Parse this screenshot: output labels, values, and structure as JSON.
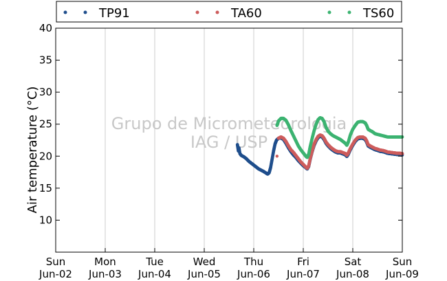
{
  "chart_data": {
    "type": "scatter",
    "ylabel": "Air temperature (°C)",
    "xlabel": "",
    "ylim": [
      5,
      40
    ],
    "yticks": [
      10,
      15,
      20,
      25,
      30,
      35,
      40
    ],
    "xlim_days": [
      0,
      7
    ],
    "xticks": [
      {
        "day": "Sun",
        "date": "Jun-02"
      },
      {
        "day": "Mon",
        "date": "Jun-03"
      },
      {
        "day": "Tue",
        "date": "Jun-04"
      },
      {
        "day": "Wed",
        "date": "Jun-05"
      },
      {
        "day": "Thu",
        "date": "Jun-06"
      },
      {
        "day": "Fri",
        "date": "Jun-07"
      },
      {
        "day": "Sat",
        "date": "Jun-08"
      },
      {
        "day": "Sun",
        "date": "Jun-09"
      }
    ],
    "grid": "vertical",
    "legend_position": "top",
    "watermark": [
      "Grupo de Micrometeorologia",
      "IAG / USP"
    ],
    "series": [
      {
        "name": "TP91",
        "color": "#1f4e8c",
        "points": [
          [
            3.67,
            21.8
          ],
          [
            3.69,
            20.8
          ],
          [
            3.7,
            21.3
          ],
          [
            3.72,
            20.4
          ],
          [
            3.75,
            20.1
          ],
          [
            3.8,
            19.9
          ],
          [
            3.85,
            19.6
          ],
          [
            3.9,
            19.2
          ],
          [
            3.95,
            18.9
          ],
          [
            4.0,
            18.6
          ],
          [
            4.05,
            18.3
          ],
          [
            4.1,
            18.0
          ],
          [
            4.15,
            17.8
          ],
          [
            4.2,
            17.6
          ],
          [
            4.25,
            17.35
          ],
          [
            4.28,
            17.2
          ],
          [
            4.31,
            17.4
          ],
          [
            4.34,
            18.2
          ],
          [
            4.37,
            19.5
          ],
          [
            4.4,
            20.8
          ],
          [
            4.43,
            21.9
          ],
          [
            4.46,
            22.5
          ],
          [
            4.5,
            22.8
          ],
          [
            4.55,
            22.85
          ],
          [
            4.6,
            22.6
          ],
          [
            4.65,
            22.0
          ],
          [
            4.7,
            21.3
          ],
          [
            4.75,
            20.7
          ],
          [
            4.8,
            20.2
          ],
          [
            4.85,
            19.8
          ],
          [
            4.9,
            19.3
          ],
          [
            4.95,
            18.9
          ],
          [
            5.0,
            18.5
          ],
          [
            5.05,
            18.2
          ],
          [
            5.08,
            18.0
          ],
          [
            5.11,
            18.4
          ],
          [
            5.14,
            19.5
          ],
          [
            5.18,
            20.7
          ],
          [
            5.22,
            21.7
          ],
          [
            5.26,
            22.4
          ],
          [
            5.3,
            22.9
          ],
          [
            5.34,
            23.1
          ],
          [
            5.38,
            23.0
          ],
          [
            5.42,
            22.6
          ],
          [
            5.46,
            22.0
          ],
          [
            5.5,
            21.6
          ],
          [
            5.55,
            21.2
          ],
          [
            5.6,
            20.9
          ],
          [
            5.65,
            20.65
          ],
          [
            5.7,
            20.5
          ],
          [
            5.75,
            20.5
          ],
          [
            5.8,
            20.35
          ],
          [
            5.85,
            20.2
          ],
          [
            5.88,
            19.95
          ],
          [
            5.91,
            20.3
          ],
          [
            5.95,
            21.0
          ],
          [
            6.0,
            21.7
          ],
          [
            6.05,
            22.3
          ],
          [
            6.1,
            22.7
          ],
          [
            6.15,
            22.8
          ],
          [
            6.2,
            22.8
          ],
          [
            6.25,
            22.6
          ],
          [
            6.28,
            22.2
          ],
          [
            6.31,
            21.6
          ],
          [
            6.35,
            21.4
          ],
          [
            6.4,
            21.2
          ],
          [
            6.45,
            21.0
          ],
          [
            6.5,
            20.9
          ],
          [
            6.55,
            20.75
          ],
          [
            6.6,
            20.7
          ],
          [
            6.65,
            20.6
          ],
          [
            6.7,
            20.45
          ],
          [
            6.75,
            20.4
          ],
          [
            6.8,
            20.35
          ],
          [
            6.85,
            20.3
          ],
          [
            6.9,
            20.25
          ],
          [
            6.95,
            20.25
          ],
          [
            7.0,
            20.2
          ]
        ]
      },
      {
        "name": "TA60",
        "color": "#cd5c5c",
        "points": [
          [
            4.47,
            20.0
          ],
          [
            4.5,
            22.8
          ],
          [
            4.55,
            23.0
          ],
          [
            4.6,
            22.8
          ],
          [
            4.65,
            22.3
          ],
          [
            4.7,
            21.6
          ],
          [
            4.75,
            21.0
          ],
          [
            4.8,
            20.6
          ],
          [
            4.85,
            20.1
          ],
          [
            4.9,
            19.6
          ],
          [
            4.95,
            19.1
          ],
          [
            5.0,
            18.7
          ],
          [
            5.05,
            18.3
          ],
          [
            5.08,
            18.1
          ],
          [
            5.11,
            18.5
          ],
          [
            5.14,
            19.6
          ],
          [
            5.18,
            20.8
          ],
          [
            5.22,
            21.9
          ],
          [
            5.26,
            22.6
          ],
          [
            5.3,
            23.1
          ],
          [
            5.34,
            23.3
          ],
          [
            5.38,
            23.2
          ],
          [
            5.42,
            22.8
          ],
          [
            5.46,
            22.2
          ],
          [
            5.5,
            21.8
          ],
          [
            5.55,
            21.4
          ],
          [
            5.6,
            21.1
          ],
          [
            5.65,
            20.85
          ],
          [
            5.7,
            20.7
          ],
          [
            5.75,
            20.7
          ],
          [
            5.8,
            20.55
          ],
          [
            5.85,
            20.4
          ],
          [
            5.88,
            20.15
          ],
          [
            5.91,
            20.5
          ],
          [
            5.95,
            21.2
          ],
          [
            6.0,
            21.9
          ],
          [
            6.05,
            22.5
          ],
          [
            6.1,
            22.9
          ],
          [
            6.15,
            23.0
          ],
          [
            6.2,
            23.0
          ],
          [
            6.25,
            22.8
          ],
          [
            6.28,
            22.4
          ],
          [
            6.31,
            21.8
          ],
          [
            6.35,
            21.6
          ],
          [
            6.4,
            21.4
          ],
          [
            6.45,
            21.2
          ],
          [
            6.5,
            21.1
          ],
          [
            6.55,
            20.95
          ],
          [
            6.6,
            20.9
          ],
          [
            6.65,
            20.8
          ],
          [
            6.7,
            20.65
          ],
          [
            6.75,
            20.6
          ],
          [
            6.8,
            20.55
          ],
          [
            6.85,
            20.5
          ],
          [
            6.9,
            20.45
          ],
          [
            6.95,
            20.45
          ],
          [
            7.0,
            20.4
          ]
        ]
      },
      {
        "name": "TS60",
        "color": "#3cb371",
        "points": [
          [
            4.47,
            24.8
          ],
          [
            4.5,
            25.5
          ],
          [
            4.55,
            25.9
          ],
          [
            4.6,
            25.9
          ],
          [
            4.65,
            25.6
          ],
          [
            4.7,
            24.9
          ],
          [
            4.75,
            24.0
          ],
          [
            4.8,
            23.2
          ],
          [
            4.85,
            22.4
          ],
          [
            4.9,
            21.6
          ],
          [
            4.95,
            21.0
          ],
          [
            5.0,
            20.5
          ],
          [
            5.05,
            20.0
          ],
          [
            5.08,
            19.8
          ],
          [
            5.11,
            20.3
          ],
          [
            5.14,
            21.5
          ],
          [
            5.18,
            22.8
          ],
          [
            5.22,
            24.0
          ],
          [
            5.26,
            25.0
          ],
          [
            5.3,
            25.7
          ],
          [
            5.34,
            26.0
          ],
          [
            5.38,
            25.9
          ],
          [
            5.42,
            25.4
          ],
          [
            5.46,
            24.5
          ],
          [
            5.5,
            23.9
          ],
          [
            5.55,
            23.5
          ],
          [
            5.6,
            23.2
          ],
          [
            5.65,
            23.0
          ],
          [
            5.7,
            22.8
          ],
          [
            5.75,
            22.6
          ],
          [
            5.8,
            22.3
          ],
          [
            5.85,
            22.0
          ],
          [
            5.88,
            21.7
          ],
          [
            5.91,
            22.2
          ],
          [
            5.95,
            23.3
          ],
          [
            6.0,
            24.2
          ],
          [
            6.05,
            24.8
          ],
          [
            6.1,
            25.3
          ],
          [
            6.15,
            25.4
          ],
          [
            6.2,
            25.4
          ],
          [
            6.25,
            25.2
          ],
          [
            6.28,
            24.8
          ],
          [
            6.31,
            24.2
          ],
          [
            6.35,
            24.0
          ],
          [
            6.4,
            23.8
          ],
          [
            6.45,
            23.5
          ],
          [
            6.5,
            23.4
          ],
          [
            6.55,
            23.3
          ],
          [
            6.6,
            23.2
          ],
          [
            6.65,
            23.1
          ],
          [
            6.7,
            23.0
          ],
          [
            6.75,
            23.0
          ],
          [
            6.8,
            23.0
          ],
          [
            6.85,
            23.0
          ],
          [
            6.9,
            23.0
          ],
          [
            6.95,
            23.0
          ],
          [
            7.0,
            23.0
          ]
        ]
      }
    ]
  }
}
